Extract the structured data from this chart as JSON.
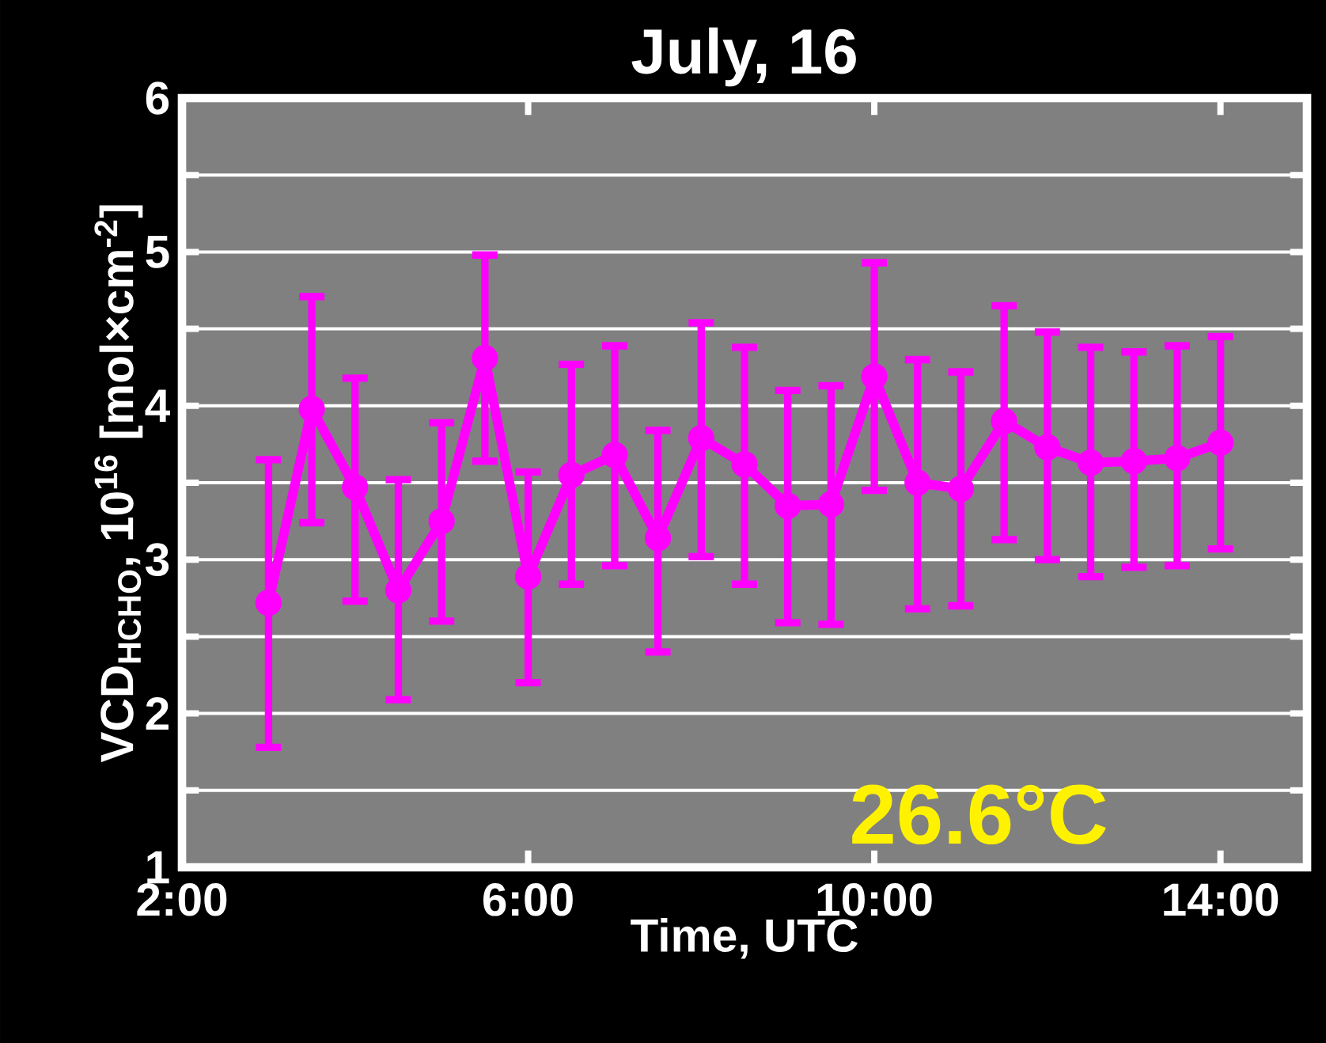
{
  "chart_data": {
    "type": "line",
    "title": "July, 16",
    "xlabel": "Time, UTC",
    "ylabel": "VCD$_{HCHO}$, 10$^{16}$ [mol×cm$^{-2}$]",
    "x": [
      3,
      3.5,
      4,
      4.5,
      5,
      5.5,
      6,
      6.5,
      7,
      7.5,
      8,
      8.5,
      9,
      9.5,
      10,
      10.5,
      11,
      11.5,
      12,
      12.5,
      13,
      13.5,
      14
    ],
    "series": [
      {
        "color": "#ff00ff",
        "values": [
          2.72,
          3.98,
          3.47,
          2.8,
          3.25,
          4.31,
          2.89,
          3.55,
          3.68,
          3.14,
          3.79,
          3.62,
          3.35,
          3.36,
          4.19,
          3.5,
          3.46,
          3.9,
          3.73,
          3.63,
          3.64,
          3.66,
          3.76
        ],
        "errors": [
          [
            1.78,
            3.65
          ],
          [
            3.24,
            4.71
          ],
          [
            2.73,
            4.18
          ],
          [
            2.09,
            3.52
          ],
          [
            2.6,
            3.89
          ],
          [
            3.64,
            4.98
          ],
          [
            2.2,
            3.57
          ],
          [
            2.84,
            4.27
          ],
          [
            2.96,
            4.39
          ],
          [
            2.4,
            3.84
          ],
          [
            3.02,
            4.54
          ],
          [
            2.84,
            4.38
          ],
          [
            2.59,
            4.1
          ],
          [
            2.58,
            4.13
          ],
          [
            3.45,
            4.93
          ],
          [
            2.68,
            4.3
          ],
          [
            2.7,
            4.22
          ],
          [
            3.13,
            4.65
          ],
          [
            3.0,
            4.48
          ],
          [
            2.89,
            4.38
          ],
          [
            2.95,
            4.35
          ],
          [
            2.96,
            4.39
          ],
          [
            3.07,
            4.45
          ]
        ]
      }
    ],
    "xlim": [
      2,
      15
    ],
    "xticks": [
      {
        "value": 2,
        "label": "2:00"
      },
      {
        "value": 6,
        "label": "6:00"
      },
      {
        "value": 10,
        "label": "10:00"
      },
      {
        "value": 14,
        "label": "14:00"
      }
    ],
    "ylim": [
      1,
      6
    ],
    "yticks": [
      1,
      {
        "value": 1.5,
        "label": null
      },
      2,
      {
        "value": 2.5,
        "label": null
      },
      3,
      {
        "value": 3.5,
        "label": null
      },
      4,
      {
        "value": 4.5,
        "label": null
      },
      5,
      {
        "value": 5.5,
        "label": null
      },
      6
    ],
    "grid": "y",
    "marker": "circle",
    "line_style": "solid",
    "annotations": [
      "26.6°C"
    ]
  }
}
